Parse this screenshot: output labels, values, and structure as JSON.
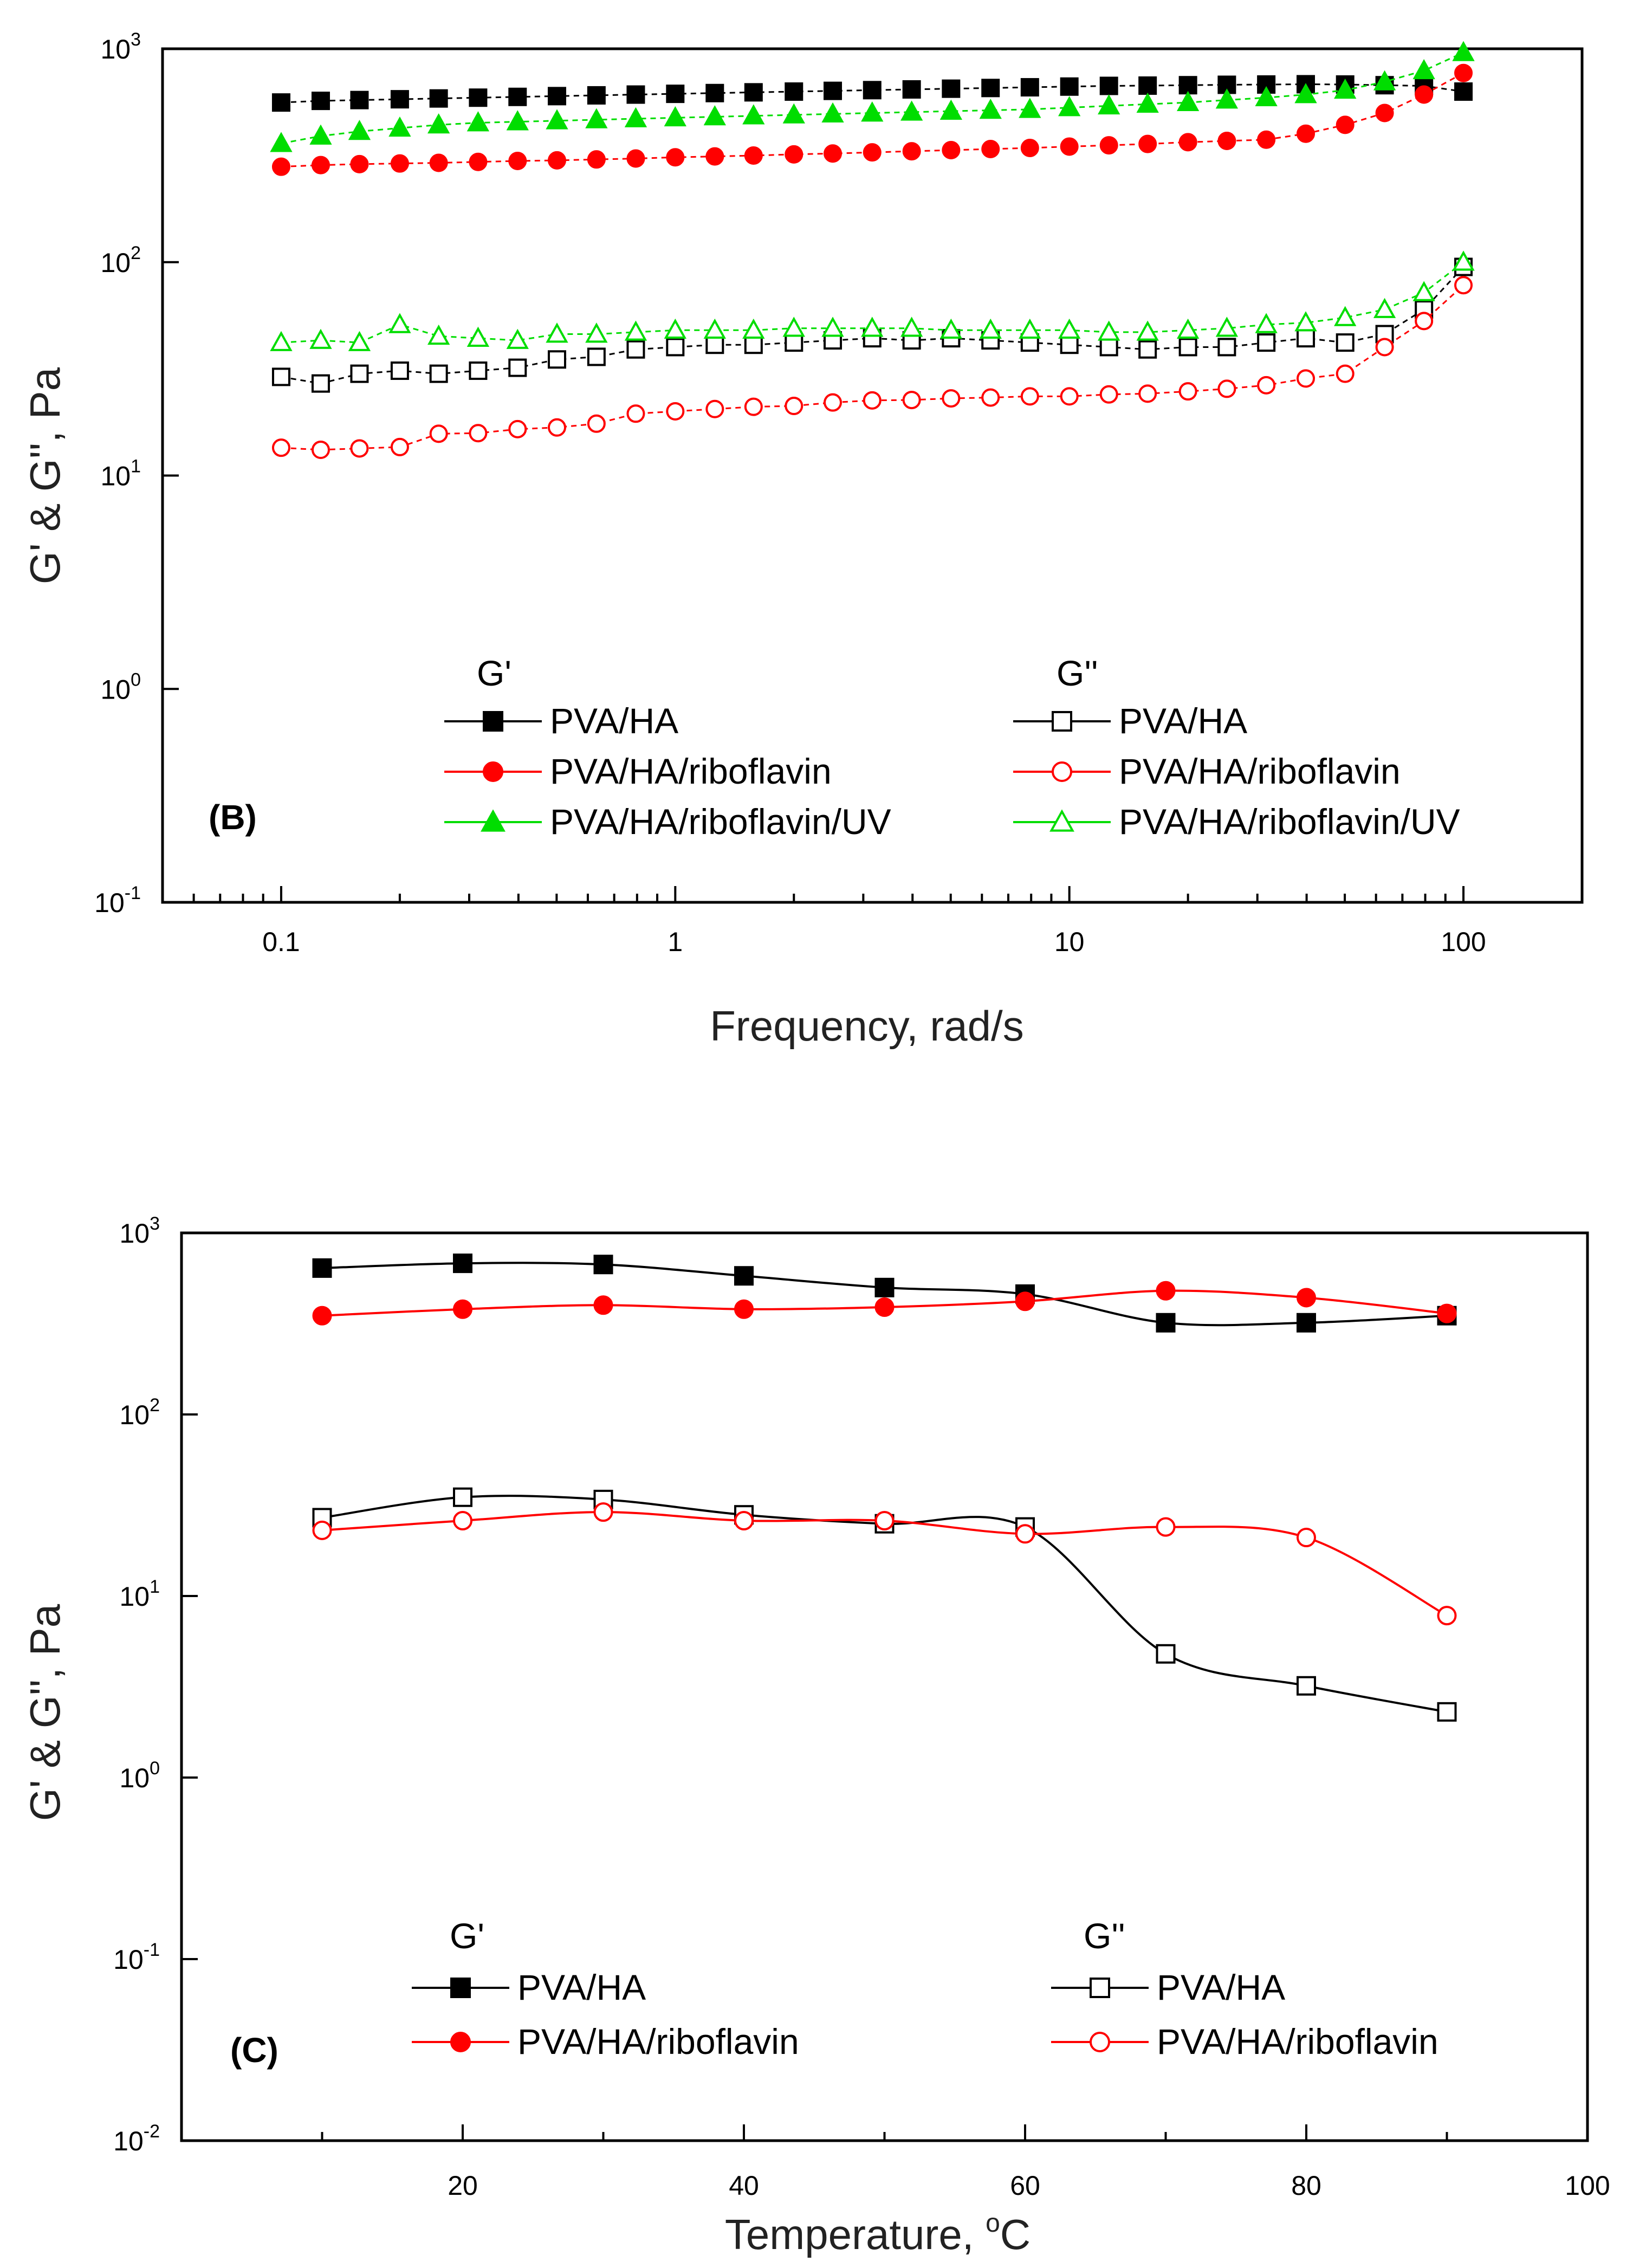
{
  "chart_data": [
    {
      "id": "B",
      "type": "scatter",
      "panel_label": "(B)",
      "xscale": "log",
      "yscale": "log",
      "xlabel": "Frequency, rad/s",
      "ylabel": "G' & G'', Pa",
      "xlim": [
        0.05,
        200
      ],
      "ylim": [
        0.1,
        1000
      ],
      "xticks": [
        {
          "value": 0.1,
          "label": "0.1"
        },
        {
          "value": 1,
          "label": "1"
        },
        {
          "value": 10,
          "label": "10"
        },
        {
          "value": 100,
          "label": "100"
        }
      ],
      "yticks": [
        {
          "value": 0.1,
          "base": "10",
          "exp": "-1"
        },
        {
          "value": 1,
          "base": "10",
          "exp": "0"
        },
        {
          "value": 10,
          "base": "10",
          "exp": "1"
        },
        {
          "value": 100,
          "base": "10",
          "exp": "2"
        },
        {
          "value": 1000,
          "base": "10",
          "exp": "3"
        }
      ],
      "legend": {
        "position": "bottom",
        "header_left": "G'",
        "header_right": "G''"
      },
      "x": [
        0.1,
        0.126,
        0.158,
        0.2,
        0.251,
        0.316,
        0.398,
        0.501,
        0.631,
        0.794,
        1,
        1.26,
        1.58,
        2,
        2.51,
        3.16,
        3.98,
        5.01,
        6.31,
        7.94,
        10,
        12.6,
        15.8,
        20,
        25.1,
        31.6,
        39.8,
        50.1,
        63.1,
        79.4,
        100
      ],
      "series": [
        {
          "name": "PVA/HA",
          "group": "G'",
          "color": "#000000",
          "marker": "square",
          "filled": true,
          "values": [
            560,
            570,
            575,
            580,
            585,
            590,
            595,
            600,
            605,
            610,
            615,
            620,
            625,
            630,
            635,
            640,
            645,
            650,
            655,
            660,
            665,
            670,
            672,
            675,
            678,
            680,
            682,
            680,
            675,
            670,
            630
          ]
        },
        {
          "name": "PVA/HA/riboflavin",
          "group": "G'",
          "color": "#ff0000",
          "marker": "circle",
          "filled": true,
          "values": [
            280,
            285,
            288,
            290,
            292,
            295,
            298,
            300,
            303,
            306,
            310,
            313,
            316,
            320,
            323,
            327,
            331,
            335,
            339,
            343,
            348,
            353,
            358,
            365,
            370,
            375,
            400,
            440,
            500,
            610,
            770
          ]
        },
        {
          "name": "PVA/HA/riboflavin/UV",
          "group": "G'",
          "color": "#00dd00",
          "marker": "triangle",
          "filled": true,
          "values": [
            360,
            390,
            410,
            425,
            440,
            450,
            455,
            460,
            465,
            470,
            475,
            480,
            485,
            490,
            495,
            500,
            505,
            510,
            515,
            520,
            530,
            540,
            550,
            560,
            575,
            590,
            610,
            640,
            700,
            790,
            960
          ]
        },
        {
          "name": "PVA/HA",
          "group": "G''",
          "color": "#000000",
          "marker": "square",
          "filled": false,
          "values": [
            29,
            27,
            30,
            31,
            30,
            31,
            32,
            35,
            36,
            39,
            40,
            41,
            41,
            42,
            43,
            44,
            43,
            44,
            43,
            42,
            41,
            40,
            39,
            40,
            40,
            42,
            44,
            42,
            46,
            60,
            95
          ]
        },
        {
          "name": "PVA/HA/riboflavin",
          "group": "G''",
          "color": "#ff0000",
          "marker": "circle",
          "filled": false,
          "values": [
            13.5,
            13.2,
            13.4,
            13.6,
            15.7,
            15.8,
            16.5,
            16.8,
            17.5,
            19.5,
            20,
            20.5,
            21,
            21.2,
            22,
            22.5,
            22.6,
            23,
            23.2,
            23.5,
            23.5,
            24,
            24.2,
            24.8,
            25.5,
            26.5,
            28.5,
            30,
            40,
            53,
            78
          ]
        },
        {
          "name": "PVA/HA/riboflavin/UV",
          "group": "G''",
          "color": "#00dd00",
          "marker": "triangle",
          "filled": false,
          "values": [
            42,
            43,
            42,
            51,
            45,
            44,
            43,
            46,
            46,
            47,
            48,
            48,
            48,
            49,
            49,
            49,
            49,
            48,
            48,
            48,
            48,
            47,
            47,
            48,
            49,
            51,
            52,
            55,
            60,
            72,
            100
          ]
        }
      ]
    },
    {
      "id": "C",
      "type": "line",
      "panel_label": "(C)",
      "xscale": "linear",
      "yscale": "log",
      "xlabel": "Temperature, ",
      "xlabel_unit_sup": "o",
      "xlabel_unit": "C",
      "ylabel": "G' & G'', Pa",
      "xlim": [
        0,
        100
      ],
      "ylim": [
        0.01,
        1000
      ],
      "xticks": [
        {
          "value": 20,
          "label": "20"
        },
        {
          "value": 40,
          "label": "40"
        },
        {
          "value": 60,
          "label": "60"
        },
        {
          "value": 80,
          "label": "80"
        },
        {
          "value": 100,
          "label": "100"
        }
      ],
      "yticks": [
        {
          "value": 0.01,
          "base": "10",
          "exp": "-2"
        },
        {
          "value": 0.1,
          "base": "10",
          "exp": "-1"
        },
        {
          "value": 1,
          "base": "10",
          "exp": "0"
        },
        {
          "value": 10,
          "base": "10",
          "exp": "1"
        },
        {
          "value": 100,
          "base": "10",
          "exp": "2"
        },
        {
          "value": 1000,
          "base": "10",
          "exp": "3"
        }
      ],
      "legend": {
        "position": "bottom",
        "header_left": "G'",
        "header_right": "G''"
      },
      "x": [
        10,
        20,
        30,
        40,
        50,
        60,
        70,
        80,
        90
      ],
      "series": [
        {
          "name": "PVA/HA",
          "group": "G'",
          "color": "#000000",
          "marker": "square",
          "filled": true,
          "values": [
            640,
            680,
            670,
            580,
            500,
            460,
            320,
            320,
            350
          ]
        },
        {
          "name": "PVA/HA/riboflavin",
          "group": "G'",
          "color": "#ff0000",
          "marker": "circle",
          "filled": true,
          "values": [
            350,
            380,
            400,
            380,
            390,
            420,
            480,
            440,
            360
          ]
        },
        {
          "name": "PVA/HA",
          "group": "G''",
          "color": "#000000",
          "marker": "square",
          "filled": false,
          "values": [
            27,
            35,
            34,
            28,
            25,
            24,
            4.8,
            3.2,
            2.3
          ]
        },
        {
          "name": "PVA/HA/riboflavin",
          "group": "G''",
          "color": "#ff0000",
          "marker": "circle",
          "filled": false,
          "values": [
            23,
            26,
            29,
            26,
            26,
            22,
            24,
            21,
            7.8
          ]
        }
      ]
    }
  ]
}
